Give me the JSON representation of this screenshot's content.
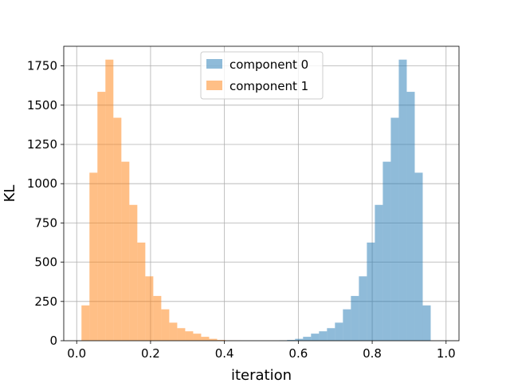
{
  "chart_data": {
    "type": "bar",
    "title": "",
    "xlabel": "iteration",
    "ylabel": "KL",
    "xlim": [
      -0.035,
      1.035
    ],
    "ylim": [
      0,
      1875
    ],
    "grid": true,
    "legend_position": "top-center",
    "x_ticks": [
      0.0,
      0.2,
      0.4,
      0.6,
      0.8,
      1.0
    ],
    "x_tick_labels": [
      "0.0",
      "0.2",
      "0.4",
      "0.6",
      "0.8",
      "1.0"
    ],
    "y_ticks": [
      0,
      250,
      500,
      750,
      1000,
      1250,
      1500,
      1750
    ],
    "y_tick_labels": [
      "0",
      "250",
      "500",
      "750",
      "1000",
      "1250",
      "1500",
      "1750"
    ],
    "series": [
      {
        "name": "component 0",
        "color": "#1f77b4",
        "alpha": 0.5,
        "bin_edges": [
          0.548,
          0.5696,
          0.5912,
          0.6128,
          0.6344,
          0.656,
          0.6776,
          0.6992,
          0.7208,
          0.7424,
          0.764,
          0.7856,
          0.8072,
          0.8288,
          0.8504,
          0.872,
          0.8936,
          0.9152,
          0.9368,
          0.9584,
          0.98
        ],
        "counts": [
          2,
          5,
          12,
          25,
          45,
          60,
          80,
          115,
          200,
          285,
          410,
          625,
          865,
          1140,
          1420,
          1790,
          1585,
          1070,
          225,
          0
        ]
      },
      {
        "name": "component 1",
        "color": "#ff7f0e",
        "alpha": 0.5,
        "bin_edges": [
          0.013,
          0.0346,
          0.0562,
          0.0778,
          0.0994,
          0.121,
          0.1426,
          0.1642,
          0.1858,
          0.2074,
          0.229,
          0.2506,
          0.2722,
          0.2938,
          0.3154,
          0.337,
          0.3586,
          0.3802,
          0.4018,
          0.4234,
          0.445
        ],
        "counts": [
          225,
          1070,
          1585,
          1790,
          1420,
          1140,
          865,
          625,
          410,
          285,
          200,
          115,
          80,
          60,
          45,
          25,
          12,
          5,
          2,
          1
        ]
      }
    ]
  }
}
